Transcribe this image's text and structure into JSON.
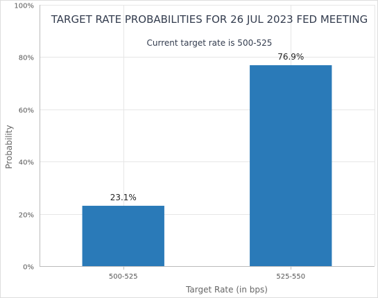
{
  "chart_data": {
    "type": "bar",
    "title": "TARGET RATE PROBABILITIES FOR 26 JUL 2023 FED MEETING",
    "subtitle": "Current target rate is 500-525",
    "xlabel": "Target Rate (in bps)",
    "ylabel": "Probability",
    "categories": [
      "500-525",
      "525-550"
    ],
    "values": [
      23.1,
      76.9
    ],
    "data_labels": [
      "23.1%",
      "76.9%"
    ],
    "ylim": [
      0,
      100
    ],
    "yticks": [
      0,
      20,
      40,
      60,
      80,
      100
    ],
    "ytick_labels": [
      "0%",
      "20%",
      "40%",
      "60%",
      "80%",
      "100%"
    ],
    "grid": true,
    "legend": "none",
    "bar_color": "#2a7ab8",
    "grid_color": "#e6e6e6",
    "axis_color": "#bbbbbb"
  }
}
